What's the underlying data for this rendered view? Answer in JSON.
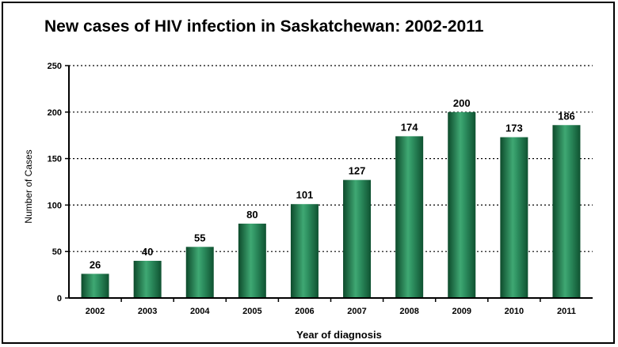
{
  "chart_data": {
    "type": "bar",
    "title": "New cases of HIV infection in Saskatchewan: 2002-2011",
    "xlabel": "Year of diagnosis",
    "ylabel": "Number of Cases",
    "categories": [
      "2002",
      "2003",
      "2004",
      "2005",
      "2006",
      "2007",
      "2008",
      "2009",
      "2010",
      "2011"
    ],
    "values": [
      26,
      40,
      55,
      80,
      101,
      127,
      174,
      200,
      173,
      186
    ],
    "ylim": [
      0,
      250
    ],
    "yticks": [
      0,
      50,
      100,
      150,
      200,
      250
    ],
    "grid": "horizontal dotted",
    "bar_color": "#1f7a4c"
  }
}
